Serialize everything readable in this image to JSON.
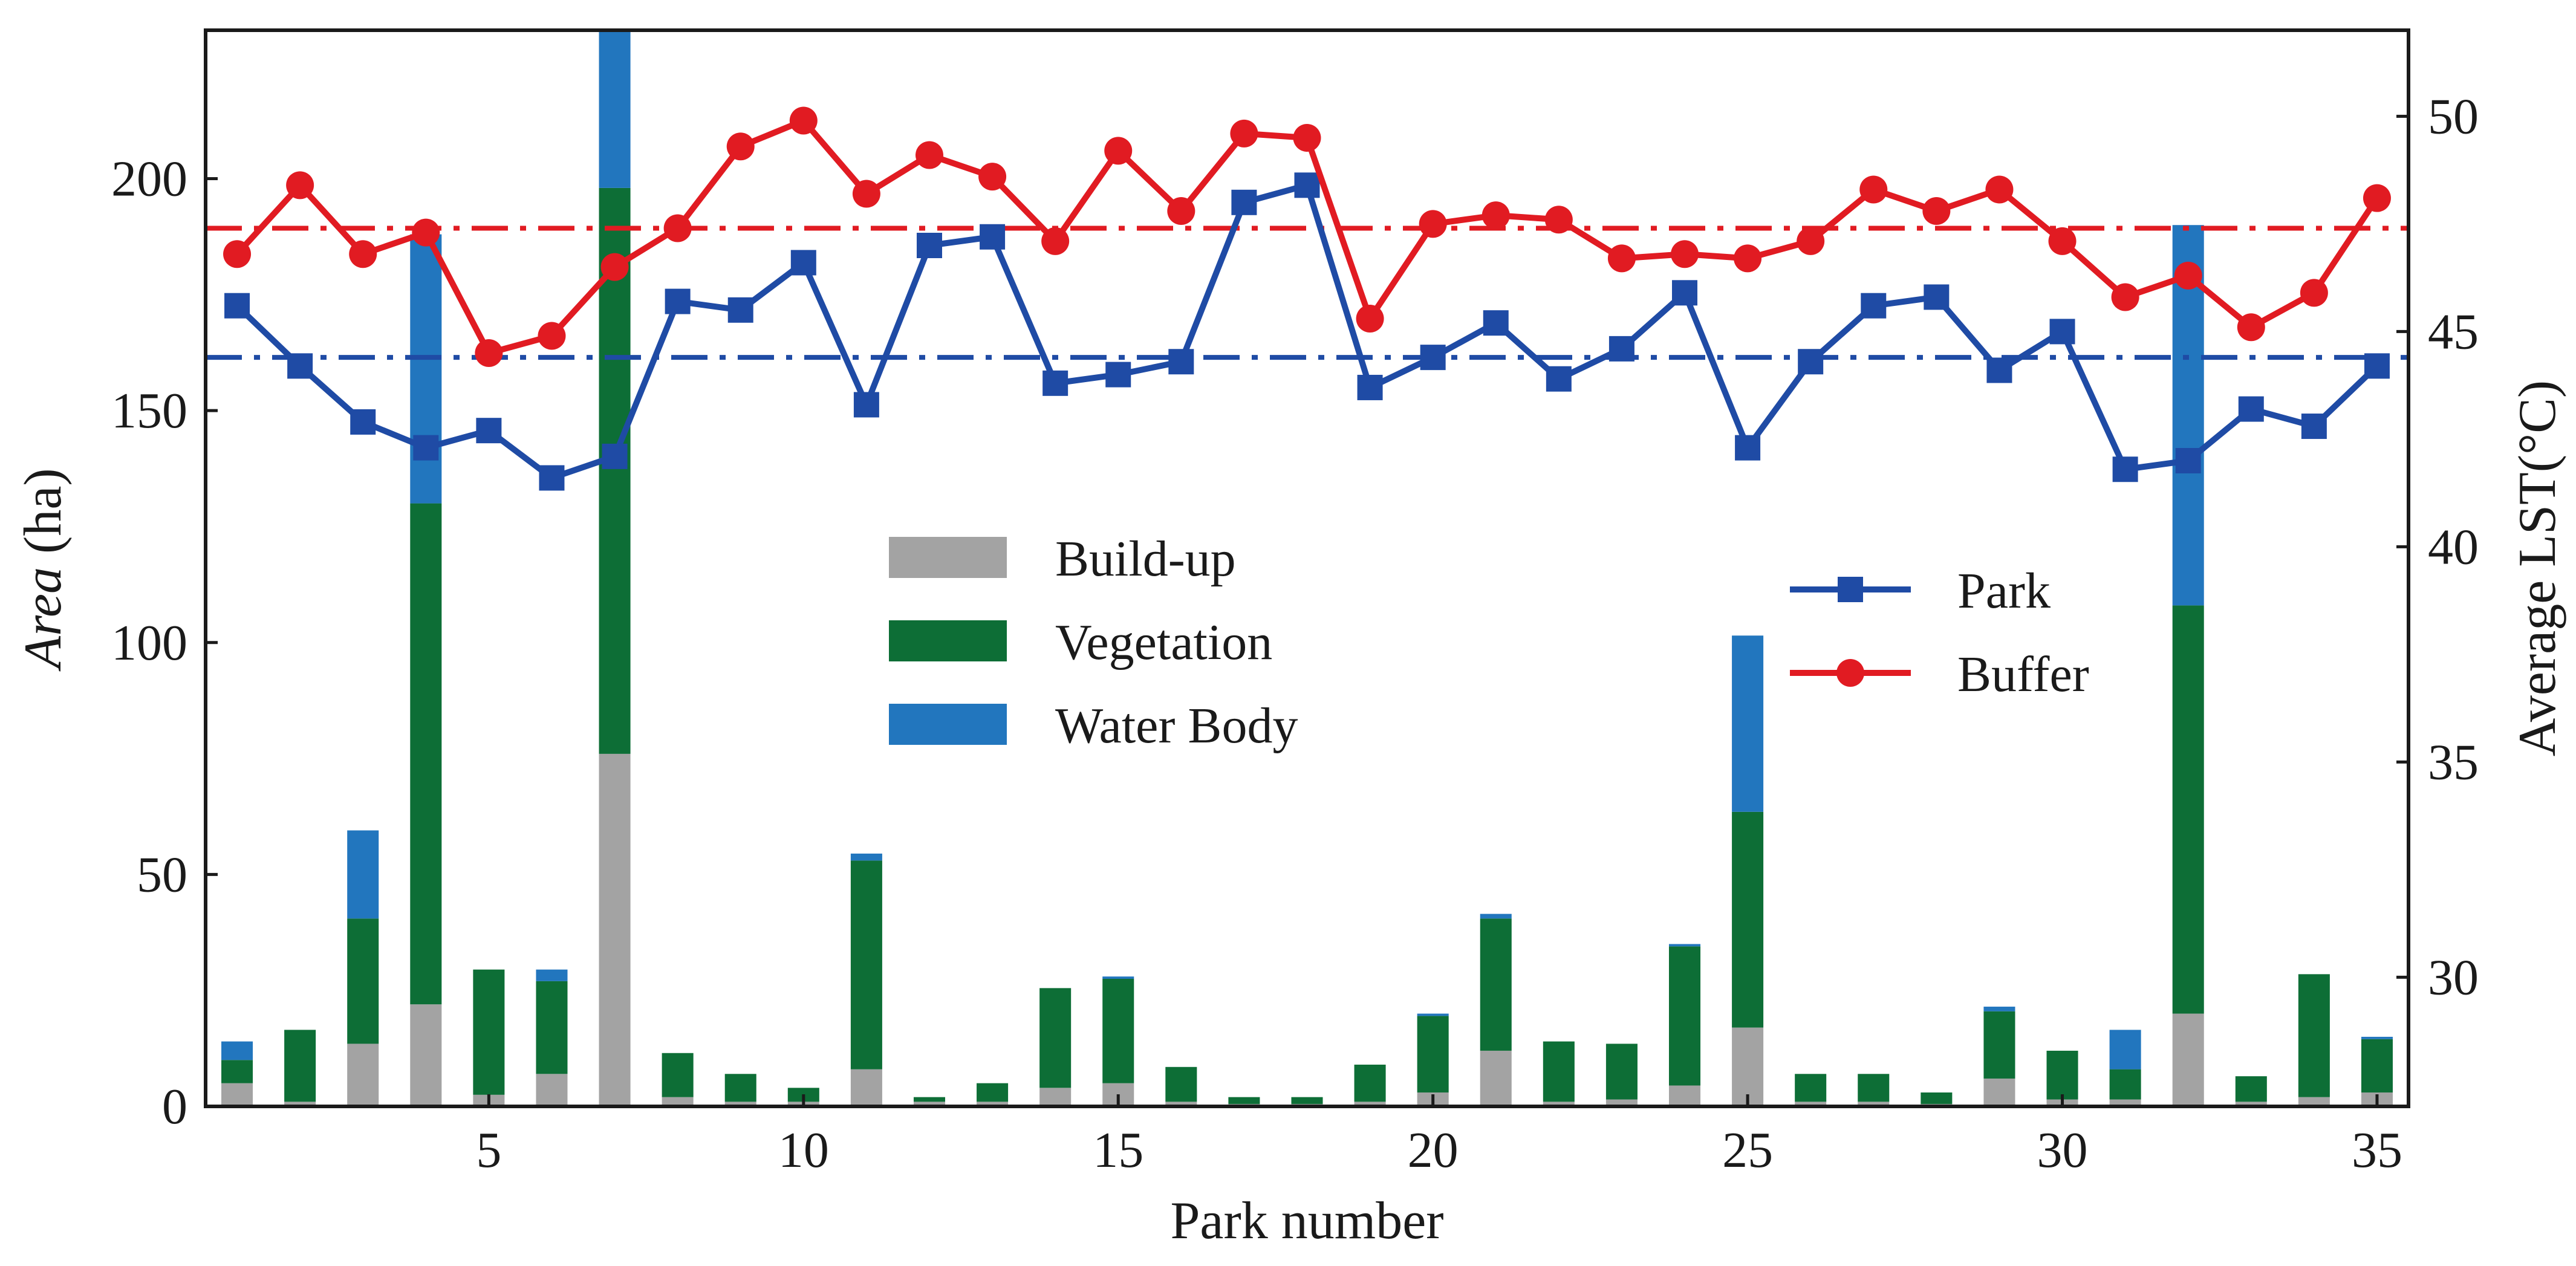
{
  "chart_data": {
    "type": "bar",
    "title": "",
    "xlabel": "Park number",
    "ylabel_left_italic": "Area",
    "ylabel_left_unit": " (ha)",
    "ylabel_right": "Average LST(°C)",
    "x": [
      1,
      2,
      3,
      4,
      5,
      6,
      7,
      8,
      9,
      10,
      11,
      12,
      13,
      14,
      15,
      16,
      17,
      18,
      19,
      20,
      21,
      22,
      23,
      24,
      25,
      26,
      27,
      28,
      29,
      30,
      31,
      32,
      33,
      34,
      35
    ],
    "xlim": [
      0.5,
      35.5
    ],
    "x_ticks": [
      5,
      10,
      15,
      20,
      25,
      30,
      35
    ],
    "x_tick_labels": [
      "5",
      "10",
      "15",
      "20",
      "25",
      "30",
      "35"
    ],
    "y_left_lim": [
      0,
      232
    ],
    "y_left_ticks": [
      0,
      50,
      100,
      150,
      200
    ],
    "y_left_tick_labels": [
      "0",
      "50",
      "100",
      "150",
      "200"
    ],
    "y_right_lim": [
      27.0,
      52.0
    ],
    "y_right_ticks": [
      30,
      35,
      40,
      45,
      50
    ],
    "y_right_tick_labels": [
      "30",
      "35",
      "40",
      "45",
      "50"
    ],
    "bar_series": [
      {
        "name": "Build-up",
        "color": "#a3a3a3",
        "values": [
          5,
          1,
          13.5,
          22,
          2.5,
          7,
          76,
          2,
          1,
          1,
          8,
          1,
          1,
          4,
          5,
          1,
          0.5,
          0.5,
          1,
          3,
          12,
          1,
          1.5,
          4.5,
          17,
          1,
          1,
          0.5,
          6,
          1.5,
          1.5,
          20,
          1,
          2,
          3
        ]
      },
      {
        "name": "Vegetation",
        "color": "#0d6e36",
        "values": [
          5,
          15.5,
          27,
          108,
          27,
          20,
          122,
          9.5,
          6,
          3,
          45,
          1,
          4,
          21.5,
          22.5,
          7.5,
          1.5,
          1.5,
          8,
          16.5,
          28.5,
          13,
          12,
          30,
          46.5,
          6,
          6,
          2.5,
          14.5,
          10.5,
          6.5,
          88,
          5.5,
          26.5,
          11.5
        ]
      },
      {
        "name": "Water Body",
        "color": "#2276be",
        "values": [
          4,
          0,
          19,
          58,
          0,
          2.5,
          34,
          0,
          0,
          0,
          1.5,
          0,
          0,
          0,
          0.5,
          0,
          0,
          0,
          0,
          0.5,
          1,
          0,
          0,
          0.5,
          38,
          0,
          0,
          0,
          1,
          0,
          8.5,
          82,
          0,
          0,
          0.5
        ]
      }
    ],
    "line_series": [
      {
        "name": "Park",
        "color": "#1f4ba5",
        "marker": "square",
        "values": [
          45.6,
          44.2,
          42.9,
          42.3,
          42.7,
          41.6,
          42.1,
          45.7,
          45.5,
          46.6,
          43.3,
          47.0,
          47.2,
          43.8,
          44.0,
          44.3,
          48.0,
          48.4,
          43.7,
          44.4,
          45.2,
          43.9,
          44.6,
          45.9,
          42.3,
          44.3,
          45.6,
          45.8,
          44.1,
          45.0,
          41.8,
          42.0,
          43.2,
          42.8,
          44.2
        ],
        "mean": 44.4
      },
      {
        "name": "Buffer",
        "color": "#e11b22",
        "marker": "circle",
        "values": [
          46.8,
          48.4,
          46.8,
          47.3,
          44.5,
          44.9,
          46.5,
          47.4,
          49.3,
          49.9,
          48.2,
          49.1,
          48.6,
          47.1,
          49.2,
          47.8,
          49.6,
          49.5,
          45.3,
          47.5,
          47.7,
          47.6,
          46.7,
          46.8,
          46.7,
          47.1,
          48.3,
          47.8,
          48.3,
          47.1,
          45.8,
          46.3,
          45.1,
          45.9,
          48.1
        ],
        "mean": 47.4
      }
    ],
    "legend_bars_placement": "center",
    "legend_lines_placement": "center-right"
  }
}
